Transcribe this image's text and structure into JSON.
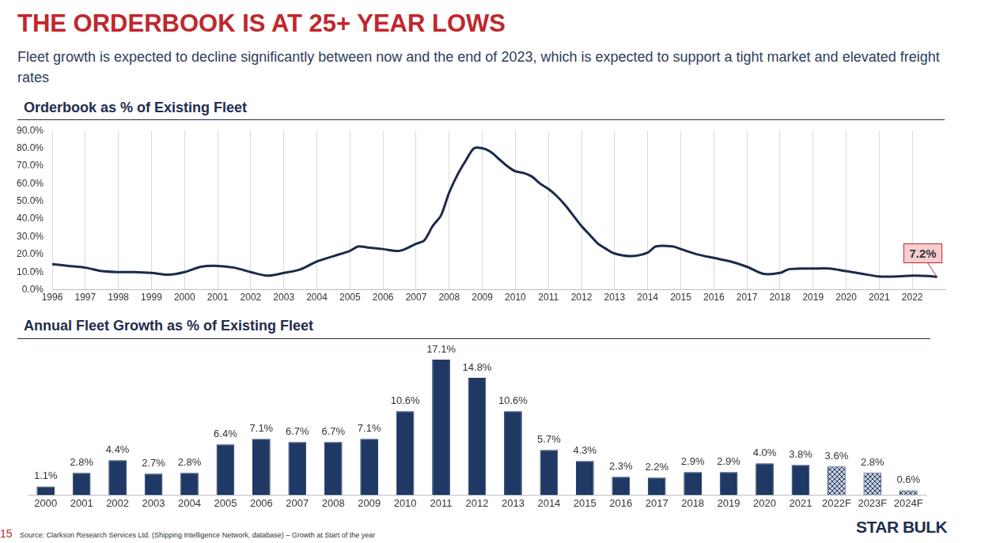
{
  "header": {
    "title": "THE ORDERBOOK IS AT 25+ YEAR LOWS",
    "subtitle": "Fleet growth is expected to decline significantly between now and the end of 2023, which is expected to support a tight market and elevated freight rates"
  },
  "chart_data": [
    {
      "type": "line",
      "title": "Orderbook as % of Existing Fleet",
      "color": "#1b2a4a",
      "x": [
        1996.0,
        1996.5,
        1997.0,
        1997.5,
        1998.0,
        1998.5,
        1999.0,
        1999.5,
        2000.0,
        2000.5,
        2001.0,
        2001.5,
        2002.0,
        2002.5,
        2003.0,
        2003.5,
        2004.0,
        2004.5,
        2005.0,
        2005.25,
        2005.5,
        2006.0,
        2006.5,
        2007.0,
        2007.25,
        2007.5,
        2007.75,
        2008.0,
        2008.25,
        2008.5,
        2008.75,
        2009.0,
        2009.25,
        2009.5,
        2009.75,
        2010.0,
        2010.25,
        2010.5,
        2010.75,
        2011.0,
        2011.25,
        2011.5,
        2011.75,
        2012.0,
        2012.25,
        2012.5,
        2012.75,
        2013.0,
        2013.5,
        2014.0,
        2014.25,
        2014.75,
        2015.0,
        2015.5,
        2016.0,
        2016.5,
        2017.0,
        2017.5,
        2018.0,
        2018.25,
        2018.75,
        2019.0,
        2019.5,
        2020.0,
        2020.5,
        2021.0,
        2021.5,
        2022.0,
        2022.5,
        2022.75
      ],
      "values": [
        14.5,
        13.5,
        12.5,
        10.5,
        10,
        10,
        9.5,
        8.5,
        10,
        13,
        13.5,
        12.5,
        10,
        8,
        9.5,
        11.5,
        16,
        19,
        22,
        24.5,
        24,
        23,
        22,
        26,
        28,
        36,
        42,
        55,
        65,
        73,
        80,
        80,
        78,
        74,
        70,
        67,
        66,
        64,
        60,
        57,
        53,
        48,
        42,
        36,
        31,
        26,
        23,
        20.5,
        19,
        21,
        24.5,
        24.5,
        23,
        20,
        18,
        16,
        13,
        9,
        9.5,
        11.5,
        12,
        12,
        12,
        10.5,
        9,
        7.5,
        7.5,
        8,
        7.8,
        7.2
      ],
      "xlim": [
        1996,
        2023
      ],
      "xticks": [
        1996,
        1997,
        1998,
        1999,
        2000,
        2001,
        2002,
        2003,
        2004,
        2005,
        2006,
        2007,
        2008,
        2009,
        2010,
        2011,
        2012,
        2013,
        2014,
        2015,
        2016,
        2017,
        2018,
        2019,
        2020,
        2021,
        2022
      ],
      "ylim": [
        0,
        90
      ],
      "yticks": [
        {
          "value": 0,
          "label": "0.0%"
        },
        {
          "value": 10,
          "label": "10.0%"
        },
        {
          "value": 20,
          "label": "20.0%"
        },
        {
          "value": 30,
          "label": "30.0%"
        },
        {
          "value": 40,
          "label": "40.0%"
        },
        {
          "value": 50,
          "label": "50.0%"
        },
        {
          "value": 60,
          "label": "60.0%"
        },
        {
          "value": 70,
          "label": "70.0%"
        },
        {
          "value": 80,
          "label": "80.0%"
        },
        {
          "value": 90,
          "label": "90.0%"
        }
      ],
      "grid": "x",
      "annotations": [
        {
          "text": "7.2%",
          "x": 2022.75,
          "y": 7.2
        }
      ]
    },
    {
      "type": "bar",
      "title": "Annual Fleet Growth as % of Existing Fleet",
      "color": "#1f3864",
      "categories": [
        "2000",
        "2001",
        "2002",
        "2003",
        "2004",
        "2005",
        "2006",
        "2007",
        "2008",
        "2009",
        "2010",
        "2011",
        "2012",
        "2013",
        "2014",
        "2015",
        "2016",
        "2017",
        "2018",
        "2019",
        "2020",
        "2021",
        "2022F",
        "2023F",
        "2024F"
      ],
      "values": [
        1.1,
        2.8,
        4.4,
        2.7,
        2.8,
        6.4,
        7.1,
        6.7,
        6.7,
        7.1,
        10.6,
        17.1,
        14.8,
        10.6,
        5.7,
        4.3,
        2.3,
        2.2,
        2.9,
        2.9,
        4.0,
        3.8,
        3.6,
        2.8,
        0.6
      ],
      "value_labels": [
        "1.1%",
        "2.8%",
        "4.4%",
        "2.7%",
        "2.8%",
        "6.4%",
        "7.1%",
        "6.7%",
        "6.7%",
        "7.1%",
        "10.6%",
        "17.1%",
        "14.8%",
        "10.6%",
        "5.7%",
        "4.3%",
        "2.3%",
        "2.2%",
        "2.9%",
        "2.9%",
        "4.0%",
        "3.8%",
        "3.6%",
        "2.8%",
        "0.6%"
      ],
      "colors": [
        "#1f3864",
        "#1f3864",
        "#1f3864",
        "#1f3864",
        "#1f3864",
        "#1f3864",
        "#1f3864",
        "#1f3864",
        "#1f3864",
        "#1f3864",
        "#1f3864",
        "#1f3864",
        "#1f3864",
        "#1f3864",
        "#1f3864",
        "#1f3864",
        "#1f3864",
        "#1f3864",
        "#1f3864",
        "#1f3864",
        "#1f3864",
        "#1f3864",
        "#c9cfdb",
        "#c9cfdb",
        "#c9cfdb"
      ],
      "ylim": [
        0,
        19
      ],
      "data_labels": true,
      "tick_labels": "x",
      "grid": false
    }
  ],
  "footer": {
    "page": 15,
    "source": "Source: Clarkson Research Services Ltd. (Shipping Intelligence Network, database) – Growth at Start of the year",
    "logo": "STAR BULK"
  }
}
